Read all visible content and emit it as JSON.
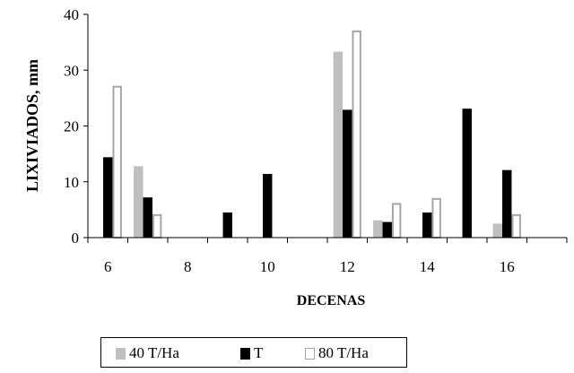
{
  "chart_data": {
    "type": "bar",
    "title": "",
    "xlabel": "DECENAS",
    "ylabel": "LIXIVIADOS, mm",
    "ylim": [
      0,
      40
    ],
    "yticks": [
      0,
      10,
      20,
      30,
      40
    ],
    "xlim": [
      5.5,
      17.5
    ],
    "xticks": [
      6,
      8,
      10,
      12,
      14,
      16
    ],
    "x": [
      6,
      7,
      8,
      9,
      10,
      11,
      12,
      13,
      14,
      15,
      16,
      17
    ],
    "series": [
      {
        "name": "40 T/Ha",
        "color": "#bfbfbf",
        "style": "filled",
        "values": [
          0,
          12.8,
          0,
          0,
          0,
          0,
          33.3,
          3.1,
          0,
          0,
          2.5,
          0
        ]
      },
      {
        "name": "T",
        "color": "#000000",
        "style": "filled",
        "values": [
          14.4,
          7.2,
          0,
          4.5,
          11.4,
          0,
          22.9,
          2.8,
          4.5,
          23.1,
          12.1,
          0
        ]
      },
      {
        "name": "80 T/Ha",
        "color": "#ffffff",
        "style": "outline",
        "values": [
          27.2,
          4.2,
          0,
          0,
          0,
          0,
          37.1,
          6.2,
          7.1,
          0,
          4.2,
          0
        ]
      }
    ],
    "legend_position": "bottom",
    "grid": false
  }
}
